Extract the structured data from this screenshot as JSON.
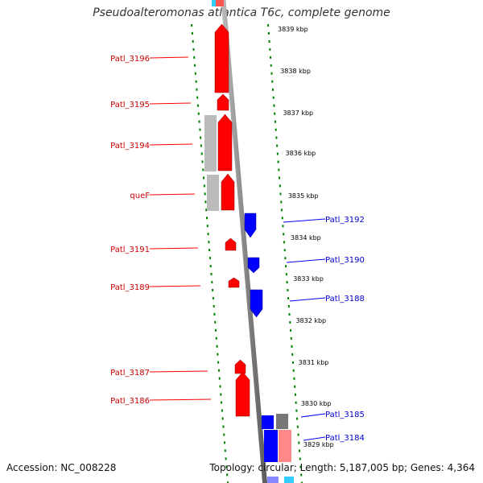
{
  "title": "Pseudoalteromonas atlantica T6c, complete genome",
  "footer": {
    "accession": "Accession: NC_008228",
    "topology": "Topology: circular; Length: 5,187,005 bp; Genes: 4,364"
  },
  "colors": {
    "forward": "#ff0000",
    "reverse": "#0000ff",
    "pseudo": "#bbbbbb",
    "backbone": "#888888",
    "ticks": "#008000",
    "forward_label": "#cc0000",
    "reverse_label": "#0000cc"
  },
  "kbp_ticks": [
    "3839 kbp",
    "3838 kbp",
    "3837 kbp",
    "3836 kbp",
    "3835 kbp",
    "3834 kbp",
    "3833 kbp",
    "3832 kbp",
    "3831 kbp",
    "3830 kbp",
    "3829 kbp"
  ],
  "forward_genes": [
    {
      "label": "Patl_3196"
    },
    {
      "label": "Patl_3195"
    },
    {
      "label": "Patl_3194"
    },
    {
      "label": "queF"
    },
    {
      "label": "Patl_3191"
    },
    {
      "label": "Patl_3189"
    },
    {
      "label": "Patl_3187"
    },
    {
      "label": "Patl_3186"
    }
  ],
  "reverse_genes": [
    {
      "label": "Patl_3192"
    },
    {
      "label": "Patl_3190"
    },
    {
      "label": "Patl_3188"
    },
    {
      "label": "Patl_3185"
    },
    {
      "label": "Patl_3184"
    }
  ]
}
